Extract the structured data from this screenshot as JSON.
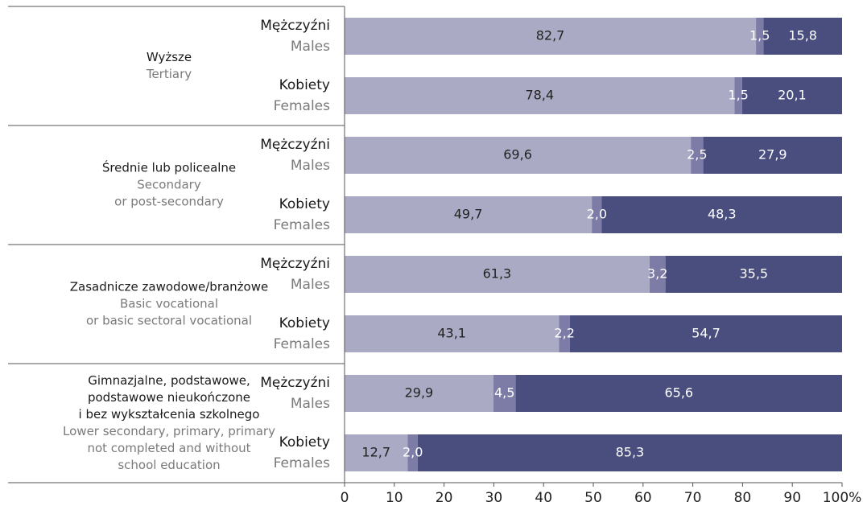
{
  "chart_data": {
    "type": "bar",
    "orientation": "horizontal",
    "stacked": true,
    "groups": [
      {
        "pl": [
          "Wyższe"
        ],
        "en": [
          "Tertiary"
        ]
      },
      {
        "pl": [
          "Średnie lub policealne"
        ],
        "en": [
          "Secondary",
          "or post-secondary"
        ]
      },
      {
        "pl": [
          "Zasadnicze zawodowe/branżowe"
        ],
        "en": [
          "Basic vocational",
          "or basic sectoral vocational"
        ]
      },
      {
        "pl": [
          "Gimnazjalne, podstawowe,",
          "podstawowe nieukończone",
          "i bez wykształcenia szkolnego"
        ],
        "en": [
          "Lower secondary, primary, primary",
          "not completed and without",
          "school education"
        ]
      }
    ],
    "categories": [
      {
        "pl": "Mężczyźni",
        "en": "Males"
      },
      {
        "pl": "Kobiety",
        "en": "Females"
      },
      {
        "pl": "Mężczyźni",
        "en": "Males"
      },
      {
        "pl": "Kobiety",
        "en": "Females"
      },
      {
        "pl": "Mężczyźni",
        "en": "Males"
      },
      {
        "pl": "Kobiety",
        "en": "Females"
      },
      {
        "pl": "Mężczyźni",
        "en": "Males"
      },
      {
        "pl": "Kobiety",
        "en": "Females"
      }
    ],
    "series": [
      {
        "color": "#aaaac4",
        "label_color": "#222222",
        "values": [
          82.7,
          78.4,
          69.6,
          49.7,
          61.3,
          43.1,
          29.9,
          12.7
        ],
        "value_labels": [
          "82,7",
          "78,4",
          "69,6",
          "49,7",
          "61,3",
          "43,1",
          "29,9",
          "12,7"
        ]
      },
      {
        "color": "#7c7ca6",
        "label_color": "#ffffff",
        "values": [
          1.5,
          1.5,
          2.5,
          2.0,
          3.2,
          2.2,
          4.5,
          2.0
        ],
        "value_labels": [
          "1,5",
          "1,5",
          "2,5",
          "2,0",
          "3,2",
          "2,2",
          "4,5",
          "2,0"
        ]
      },
      {
        "color": "#4a4e7f",
        "label_color": "#ffffff",
        "values": [
          15.8,
          20.1,
          27.9,
          48.3,
          35.5,
          54.7,
          65.6,
          85.3
        ],
        "value_labels": [
          "15,8",
          "20,1",
          "27,9",
          "48,3",
          "35,5",
          "54,7",
          "65,6",
          "85,3"
        ]
      }
    ],
    "xlim": [
      0,
      100
    ],
    "xticks": [
      0,
      10,
      20,
      30,
      40,
      50,
      60,
      70,
      80,
      90,
      {
        "value": 100,
        "label": "100%"
      }
    ]
  }
}
